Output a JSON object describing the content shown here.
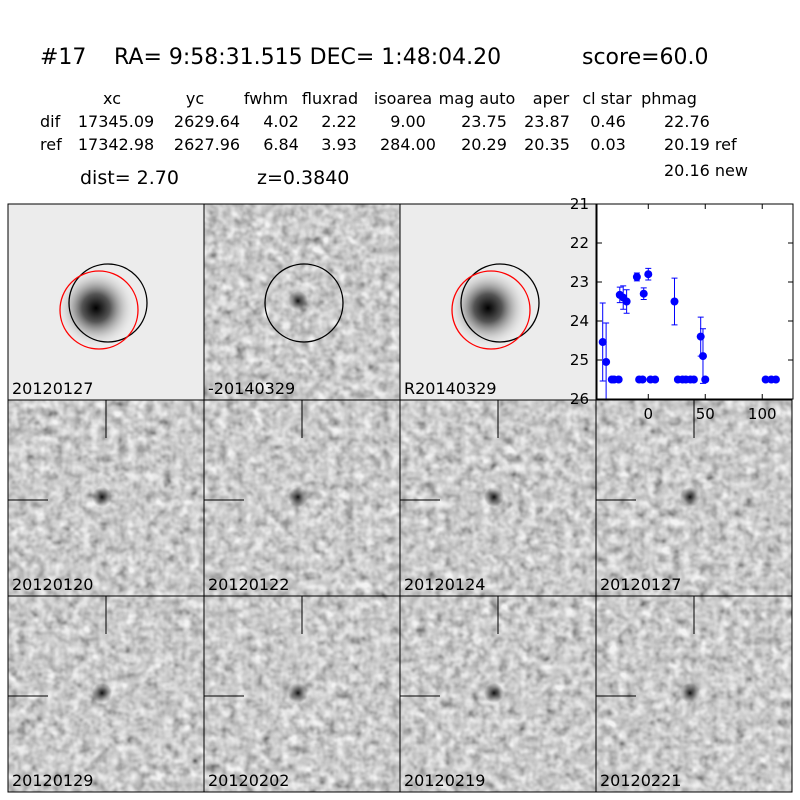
{
  "header": {
    "id": "#17",
    "coords": "RA= 9:58:31.515 DEC= 1:48:04.20",
    "score": "score=60.0"
  },
  "table": {
    "columns": [
      "xc",
      "yc",
      "fwhm",
      "fluxrad",
      "isoarea",
      "mag auto",
      "aper",
      "cl star",
      "phmag"
    ],
    "rows": [
      [
        "dif",
        "17345.09",
        "2629.64",
        "4.02",
        "2.22",
        "9.00",
        "23.75",
        "23.87",
        "0.46",
        "22.76"
      ],
      [
        "ref",
        "17342.98",
        "2627.96",
        "6.84",
        "3.93",
        "284.00",
        "20.29",
        "20.35",
        "0.03",
        "20.19 ref"
      ]
    ],
    "extra": "20.16 new"
  },
  "info": {
    "dist": "dist=  2.70",
    "z": "z=0.3840"
  },
  "stamps": [
    {
      "label": "20120127"
    },
    {
      "label": "-20140329"
    },
    {
      "label": "R20140329"
    },
    {
      "label": "20120120"
    },
    {
      "label": "20120122"
    },
    {
      "label": "20120124"
    },
    {
      "label": "20120127",
      "color": "#ff0000"
    },
    {
      "label": "20120129"
    },
    {
      "label": "20120202"
    },
    {
      "label": "20120219"
    },
    {
      "label": "20120221"
    }
  ],
  "chart_data": {
    "type": "scatter",
    "color": "#0000ff",
    "x": [
      -40,
      -37,
      -32,
      -30,
      -26,
      -25,
      -22,
      -19,
      -10,
      -8,
      -5,
      -4,
      0,
      2,
      6,
      23,
      26,
      30,
      33,
      37,
      40,
      46,
      48,
      50,
      103,
      108,
      112
    ],
    "y": [
      24.54,
      25.05,
      25.5,
      25.5,
      25.5,
      23.33,
      23.4,
      23.5,
      22.87,
      25.5,
      25.5,
      23.3,
      22.8,
      25.5,
      25.5,
      23.5,
      25.5,
      25.5,
      25.5,
      25.5,
      25.5,
      24.4,
      24.9,
      25.5,
      25.5,
      25.5,
      25.5
    ],
    "errors": [
      1.0,
      1.0,
      0.05,
      0.05,
      0.05,
      0.2,
      0.3,
      0.3,
      0.1,
      0.05,
      0.05,
      0.15,
      0.15,
      0.05,
      0.05,
      0.6,
      0.05,
      0.05,
      0.05,
      0.05,
      0.05,
      0.5,
      0.7,
      0.05,
      0.05,
      0.05,
      0.05
    ],
    "xlim": [
      -45,
      127
    ],
    "ylim": [
      26,
      21
    ],
    "xticks": [
      0,
      50,
      100
    ],
    "yticks": [
      21,
      22,
      23,
      24,
      25,
      26
    ]
  }
}
